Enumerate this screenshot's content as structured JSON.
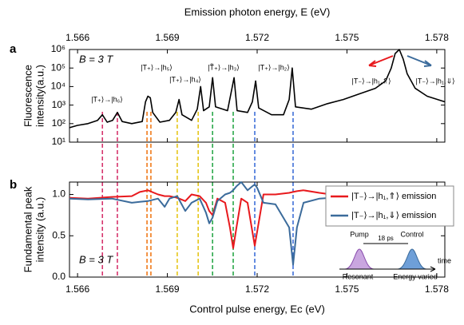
{
  "chart_data": [
    {
      "type": "line",
      "panel_label": "a",
      "xlabel": "Emission photon energy, E (eV)",
      "ylabel": [
        "Fluorescence",
        "intensity(a.u.)"
      ],
      "field_label": "B = 3 T",
      "log_y": true,
      "color": "#000000",
      "xlim": [
        1.56573,
        1.57827
      ],
      "xticks": [
        1.566,
        1.569,
        1.572,
        1.575,
        1.578
      ],
      "ylim": [
        10,
        1000000
      ],
      "yticks": [
        {
          "value": 10,
          "label": "10¹"
        },
        {
          "value": 100,
          "label": "10²"
        },
        {
          "value": 1000,
          "label": "10³"
        },
        {
          "value": 10000,
          "label": "10⁴"
        },
        {
          "value": 100000,
          "label": "10⁵"
        },
        {
          "value": 1000000,
          "label": "10⁶"
        }
      ],
      "x": [
        1.56573,
        1.566,
        1.56635,
        1.56667,
        1.56683,
        1.56699,
        1.56717,
        1.56733,
        1.56749,
        1.56781,
        1.56816,
        1.56827,
        1.56835,
        1.56843,
        1.56851,
        1.56875,
        1.56907,
        1.56928,
        1.56939,
        1.56949,
        1.56981,
        1.57,
        1.57011,
        1.57021,
        1.5704,
        1.57051,
        1.57061,
        1.57101,
        1.57123,
        1.57133,
        1.57168,
        1.57184,
        1.57195,
        1.57205,
        1.57248,
        1.57288,
        1.57307,
        1.57317,
        1.57328,
        1.57381,
        1.57435,
        1.57488,
        1.57541,
        1.57595,
        1.57629,
        1.57648,
        1.57661,
        1.57675,
        1.57688,
        1.57701,
        1.57728,
        1.57768,
        1.57827
      ],
      "values": [
        60,
        80,
        100,
        150,
        300,
        120,
        150,
        400,
        130,
        100,
        130,
        1500,
        3000,
        2500,
        400,
        120,
        150,
        400,
        2000,
        300,
        150,
        600,
        10000,
        500,
        800,
        30000,
        800,
        500,
        30000,
        500,
        400,
        1500,
        20000,
        700,
        300,
        300,
        2000,
        100000,
        800,
        600,
        1200,
        2000,
        4000,
        8000,
        20000,
        100000,
        600000,
        1000000,
        300000,
        50000,
        8000,
        3000,
        1500
      ],
      "annotations": [
        "|T₊⟩→|h₆⟩",
        "|T₊⟩→|h₅⟩",
        "|T₊⟩→|h₄⟩",
        "|T̃₊⟩→|h₃⟩",
        "|T₊⟩→|h₂⟩",
        "|T₋⟩→|h₁,⇑⟩",
        "|T₋⟩→|h₁,⇓⟩"
      ]
    },
    {
      "type": "line",
      "panel_label": "b",
      "xlabel": "Control pulse energy, Eᴄ (eV)",
      "ylabel": [
        "Fundamental peak",
        "intensity (a.u.)"
      ],
      "field_label": "B = 3 T",
      "xlim": [
        1.56573,
        1.57827
      ],
      "xticks": [
        1.566,
        1.569,
        1.572,
        1.575,
        1.578
      ],
      "ylim": [
        0,
        1.15
      ],
      "yticks": [
        {
          "value": 0,
          "label": "0.0"
        },
        {
          "value": 0.5,
          "label": "0.5"
        },
        {
          "value": 1,
          "label": "1.0"
        }
      ],
      "x": [
        1.56573,
        1.56635,
        1.56715,
        1.56781,
        1.56808,
        1.56835,
        1.56869,
        1.56891,
        1.56907,
        1.56933,
        1.5696,
        1.56981,
        1.57008,
        1.57029,
        1.5704,
        1.57051,
        1.57067,
        1.57093,
        1.57109,
        1.5712,
        1.57131,
        1.57147,
        1.57168,
        1.57184,
        1.57192,
        1.572,
        1.57221,
        1.57261,
        1.57307,
        1.5732,
        1.57333,
        1.57355,
        1.57408,
        1.57488,
        1.57595,
        1.57675,
        1.57755,
        1.57827
      ],
      "series": [
        {
          "name": "|T₋⟩→|h₁,⇑⟩ emission",
          "color": "#e8191d",
          "values": [
            0.96,
            0.95,
            0.97,
            0.98,
            1.03,
            1.05,
            1.0,
            0.98,
            0.98,
            0.96,
            0.92,
            1.0,
            0.98,
            0.9,
            0.8,
            0.75,
            0.95,
            0.9,
            0.6,
            0.35,
            0.6,
            0.95,
            0.9,
            0.55,
            0.38,
            0.55,
            1.0,
            1.0,
            1.02,
            1.03,
            1.04,
            1.05,
            1.02,
            0.98,
            0.97,
            0.96,
            0.96,
            0.96
          ]
        },
        {
          "name": "|T₋⟩→|h₁,⇓⟩ emission",
          "color": "#3b6b9b",
          "values": [
            0.95,
            0.94,
            0.95,
            0.9,
            0.91,
            0.92,
            0.95,
            0.85,
            0.95,
            0.98,
            0.8,
            0.9,
            0.95,
            0.78,
            0.65,
            0.72,
            0.92,
            1.0,
            1.02,
            1.05,
            1.1,
            1.15,
            1.05,
            1.1,
            1.12,
            1.08,
            0.9,
            0.88,
            0.6,
            0.15,
            0.6,
            0.9,
            0.95,
            0.97,
            0.98,
            0.97,
            0.98,
            0.97
          ]
        }
      ],
      "markers": [
        {
          "x": 1.56683,
          "color": "#d6336c"
        },
        {
          "x": 1.56733,
          "color": "#d6336c"
        },
        {
          "x": 1.56832,
          "color": "#f07a1a"
        },
        {
          "x": 1.56845,
          "color": "#f07a1a"
        },
        {
          "x": 1.56933,
          "color": "#e6c619"
        },
        {
          "x": 1.57003,
          "color": "#e6c619"
        },
        {
          "x": 1.57051,
          "color": "#2aa84a"
        },
        {
          "x": 1.5712,
          "color": "#2aa84a"
        },
        {
          "x": 1.57192,
          "color": "#3f6fd8"
        },
        {
          "x": 1.5732,
          "color": "#3f6fd8"
        }
      ],
      "inset": {
        "pump": "Pump",
        "control": "Control",
        "delay": "18 ps",
        "axis": "time",
        "pump_note": "Resonant",
        "control_note": "Energy varied"
      }
    }
  ]
}
